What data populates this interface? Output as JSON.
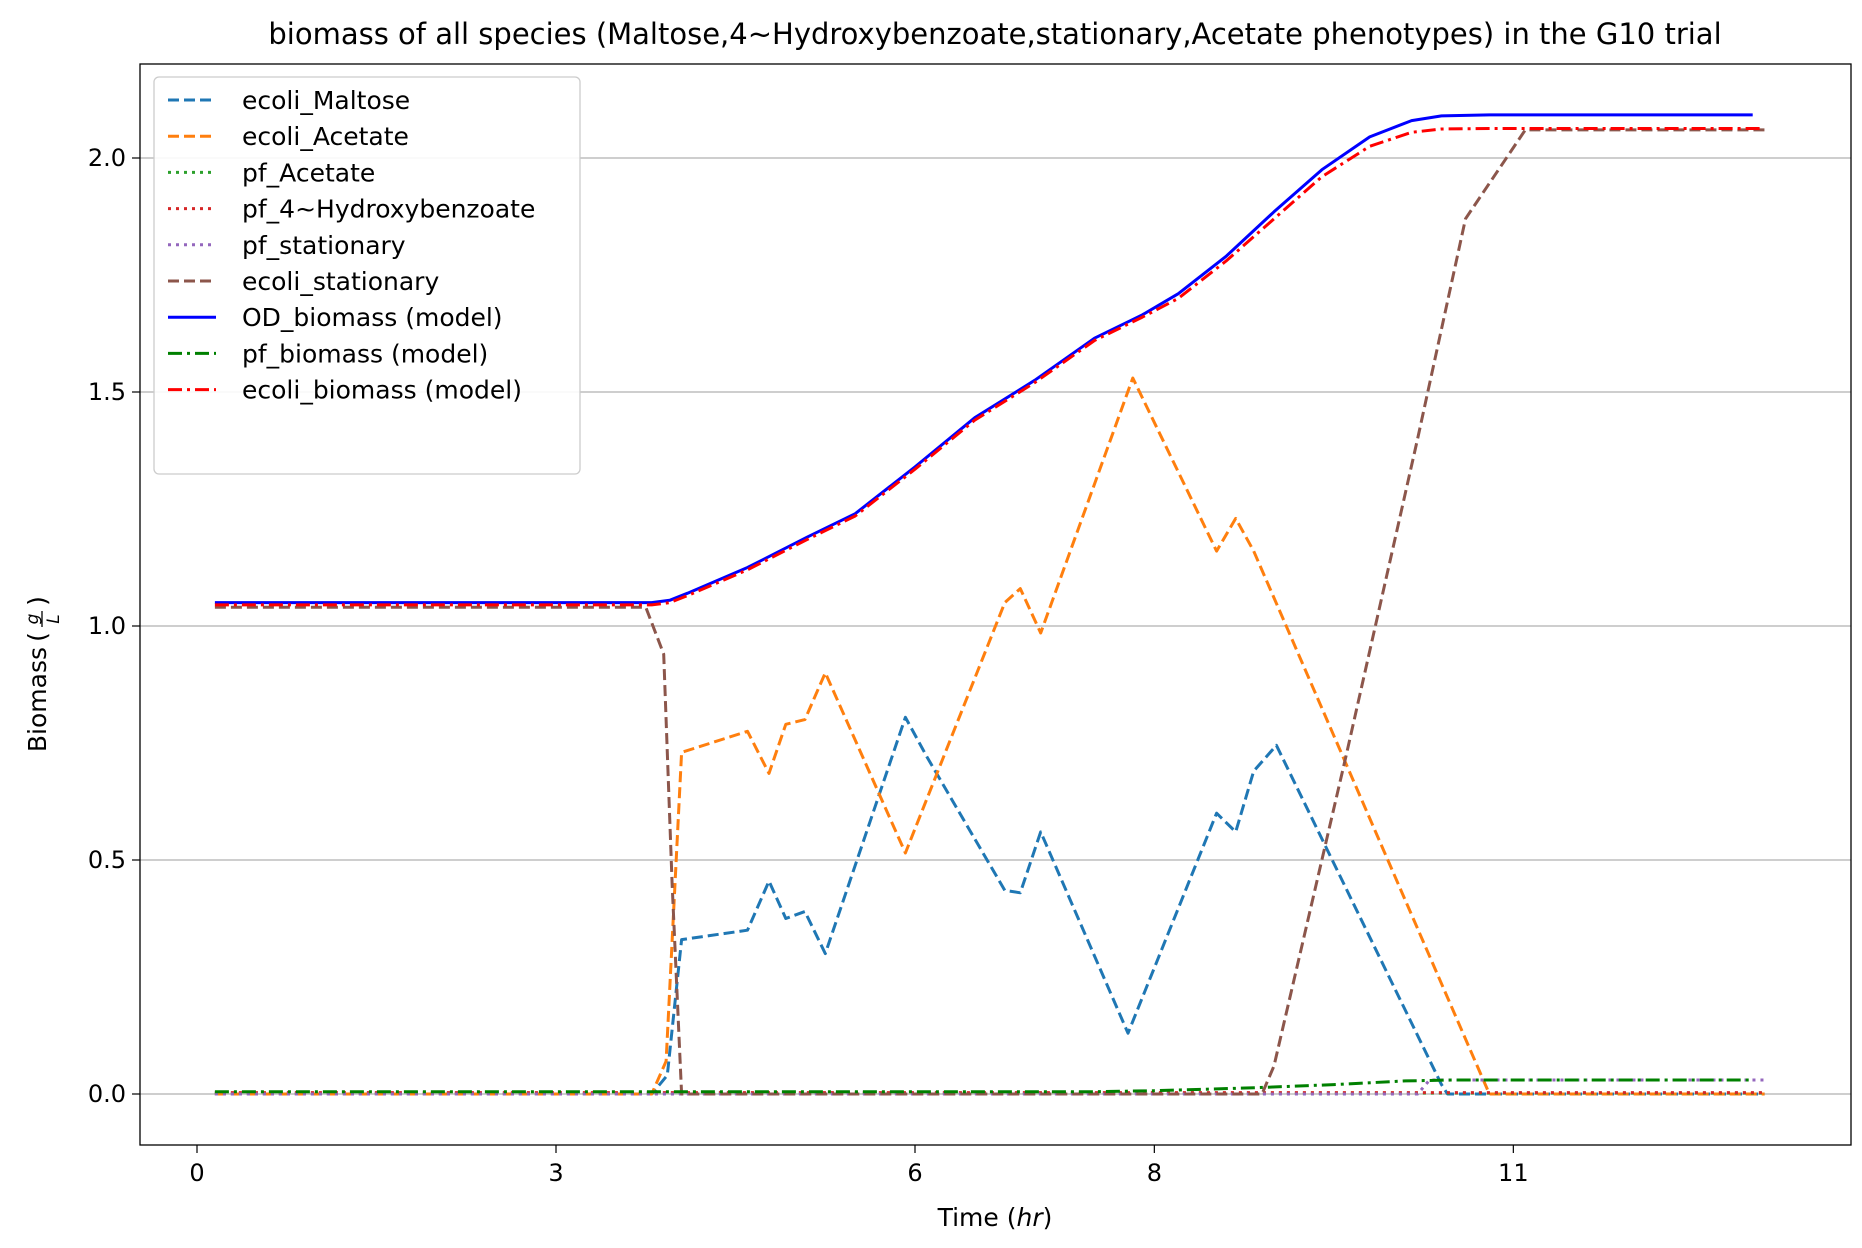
{
  "chart_data": {
    "type": "line",
    "title": "biomass of all species (Maltose,4~Hydroxybenzoate,stationary,Acetate phenotypes) in the G10 trial",
    "xlabel": "Time",
    "xlabel_unit": "hr",
    "ylabel": "Biomass",
    "ylabel_unit_num": "g",
    "ylabel_unit_den": "L",
    "xlim": [
      -0.45,
      13.85
    ],
    "ylim": [
      -0.1,
      2.2
    ],
    "x_ticks": [
      {
        "value": 0,
        "label": "0"
      },
      {
        "value": 3,
        "label": "3"
      },
      {
        "value": 6,
        "label": "6"
      },
      {
        "value": 8,
        "label": "8"
      },
      {
        "value": 11,
        "label": "11"
      }
    ],
    "y_ticks": [
      {
        "value": 0.0,
        "label": "0.0"
      },
      {
        "value": 0.5,
        "label": "0.5"
      },
      {
        "value": 1.0,
        "label": "1.0"
      },
      {
        "value": 1.5,
        "label": "1.5"
      },
      {
        "value": 2.0,
        "label": "2.0"
      }
    ],
    "grid": "horizontal",
    "legend_position": "top-left",
    "series": [
      {
        "name": "ecoli_Maltose",
        "color": "#1f77b4",
        "style": "dashed",
        "points": [
          [
            0.15,
            0
          ],
          [
            3.8,
            0
          ],
          [
            3.93,
            0.04
          ],
          [
            4.05,
            0.33
          ],
          [
            4.6,
            0.35
          ],
          [
            4.78,
            0.455
          ],
          [
            4.92,
            0.375
          ],
          [
            5.08,
            0.39
          ],
          [
            5.25,
            0.3
          ],
          [
            5.92,
            0.805
          ],
          [
            6.1,
            0.72
          ],
          [
            6.75,
            0.435
          ],
          [
            6.88,
            0.43
          ],
          [
            7.05,
            0.56
          ],
          [
            7.78,
            0.13
          ],
          [
            8.52,
            0.6
          ],
          [
            8.68,
            0.56
          ],
          [
            8.83,
            0.69
          ],
          [
            9.02,
            0.745
          ],
          [
            10.4,
            0.02
          ],
          [
            10.45,
            0.0
          ],
          [
            13.1,
            0.0
          ]
        ]
      },
      {
        "name": "ecoli_Acetate",
        "color": "#ff7f0e",
        "style": "dashed",
        "points": [
          [
            0.15,
            0
          ],
          [
            3.8,
            0
          ],
          [
            3.92,
            0.07
          ],
          [
            4.05,
            0.73
          ],
          [
            4.6,
            0.775
          ],
          [
            4.78,
            0.685
          ],
          [
            4.92,
            0.79
          ],
          [
            5.08,
            0.8
          ],
          [
            5.25,
            0.9
          ],
          [
            5.92,
            0.515
          ],
          [
            6.75,
            1.05
          ],
          [
            6.88,
            1.08
          ],
          [
            7.05,
            0.985
          ],
          [
            7.82,
            1.53
          ],
          [
            8.52,
            1.16
          ],
          [
            8.68,
            1.23
          ],
          [
            8.83,
            1.16
          ],
          [
            10.8,
            0.0
          ],
          [
            13.1,
            0.0
          ]
        ]
      },
      {
        "name": "pf_Acetate",
        "color": "#2ca02c",
        "style": "dotted",
        "points": [
          [
            0.15,
            0.002
          ],
          [
            13.1,
            0.002
          ]
        ]
      },
      {
        "name": "pf_4~Hydroxybenzoate",
        "color": "#d62728",
        "style": "dotted",
        "points": [
          [
            0.15,
            0.003
          ],
          [
            13.1,
            0.003
          ]
        ]
      },
      {
        "name": "pf_stationary",
        "color": "#9467bd",
        "style": "dotted",
        "points": [
          [
            0.15,
            0.0
          ],
          [
            10.2,
            0.0
          ],
          [
            10.3,
            0.03
          ],
          [
            13.1,
            0.03
          ]
        ]
      },
      {
        "name": "ecoli_stationary",
        "color": "#8c564b",
        "style": "dashed",
        "points": [
          [
            0.15,
            1.04
          ],
          [
            3.75,
            1.04
          ],
          [
            3.9,
            0.94
          ],
          [
            3.97,
            0.45
          ],
          [
            4.05,
            0.0
          ],
          [
            8.9,
            0.0
          ],
          [
            9.0,
            0.06
          ],
          [
            9.6,
            0.72
          ],
          [
            10.2,
            1.4
          ],
          [
            10.6,
            1.87
          ],
          [
            11.1,
            2.06
          ],
          [
            13.1,
            2.06
          ]
        ]
      },
      {
        "name": "OD_biomass (model)",
        "color": "#0000ff",
        "style": "solid",
        "points": [
          [
            0.15,
            1.05
          ],
          [
            3.8,
            1.05
          ],
          [
            3.95,
            1.055
          ],
          [
            4.1,
            1.07
          ],
          [
            4.6,
            1.125
          ],
          [
            5.1,
            1.19
          ],
          [
            5.5,
            1.24
          ],
          [
            6.0,
            1.34
          ],
          [
            6.5,
            1.445
          ],
          [
            7.0,
            1.525
          ],
          [
            7.5,
            1.615
          ],
          [
            7.9,
            1.665
          ],
          [
            8.2,
            1.71
          ],
          [
            8.6,
            1.79
          ],
          [
            9.0,
            1.885
          ],
          [
            9.4,
            1.975
          ],
          [
            9.8,
            2.045
          ],
          [
            10.15,
            2.08
          ],
          [
            10.4,
            2.09
          ],
          [
            10.8,
            2.092
          ],
          [
            13.0,
            2.092
          ]
        ]
      },
      {
        "name": "pf_biomass (model)",
        "color": "#008000",
        "style": "dashdot",
        "points": [
          [
            0.15,
            0.005
          ],
          [
            7.5,
            0.005
          ],
          [
            8.0,
            0.007
          ],
          [
            8.8,
            0.013
          ],
          [
            9.5,
            0.02
          ],
          [
            10.1,
            0.028
          ],
          [
            10.5,
            0.03
          ],
          [
            13.0,
            0.03
          ]
        ]
      },
      {
        "name": "ecoli_biomass (model)",
        "color": "#ff0000",
        "style": "dashdot",
        "points": [
          [
            0.15,
            1.045
          ],
          [
            3.8,
            1.045
          ],
          [
            3.95,
            1.05
          ],
          [
            4.1,
            1.065
          ],
          [
            4.6,
            1.12
          ],
          [
            5.1,
            1.185
          ],
          [
            5.5,
            1.235
          ],
          [
            6.0,
            1.335
          ],
          [
            6.5,
            1.44
          ],
          [
            7.0,
            1.52
          ],
          [
            7.5,
            1.61
          ],
          [
            7.9,
            1.66
          ],
          [
            8.2,
            1.7
          ],
          [
            8.6,
            1.78
          ],
          [
            9.0,
            1.87
          ],
          [
            9.4,
            1.96
          ],
          [
            9.8,
            2.025
          ],
          [
            10.15,
            2.055
          ],
          [
            10.4,
            2.062
          ],
          [
            10.8,
            2.063
          ],
          [
            13.1,
            2.063
          ]
        ]
      }
    ]
  }
}
